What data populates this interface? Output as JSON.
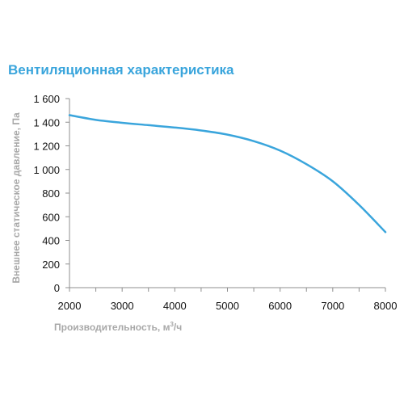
{
  "chart_data": {
    "type": "line",
    "title": "Вентиляционная характеристика",
    "xlabel_text": "Производительность, м",
    "xlabel_sup": "3",
    "xlabel_tail": "/ч",
    "ylabel": "Внешнее статическое давление, Па",
    "xlim": [
      2000,
      8000
    ],
    "ylim": [
      0,
      1600
    ],
    "xticks": [
      2000,
      3000,
      4000,
      5000,
      6000,
      7000,
      8000
    ],
    "xtick_labels": [
      "2000",
      "3000",
      "4000",
      "5000",
      "6000",
      "7000",
      "8000"
    ],
    "yticks": [
      0,
      200,
      400,
      600,
      800,
      1000,
      1200,
      1400,
      1600
    ],
    "ytick_labels": [
      "0",
      "200",
      "400",
      "600",
      "800",
      "1 000",
      "1 200",
      "1 400",
      "1 600"
    ],
    "grid": false,
    "series": [
      {
        "color": "#3aa5dc",
        "x": [
          2000,
          2500,
          3000,
          3500,
          4000,
          4500,
          5000,
          5500,
          6000,
          6500,
          7000,
          7500,
          8000
        ],
        "y": [
          1460,
          1420,
          1395,
          1375,
          1355,
          1330,
          1295,
          1240,
          1160,
          1045,
          900,
          700,
          470
        ]
      }
    ]
  }
}
